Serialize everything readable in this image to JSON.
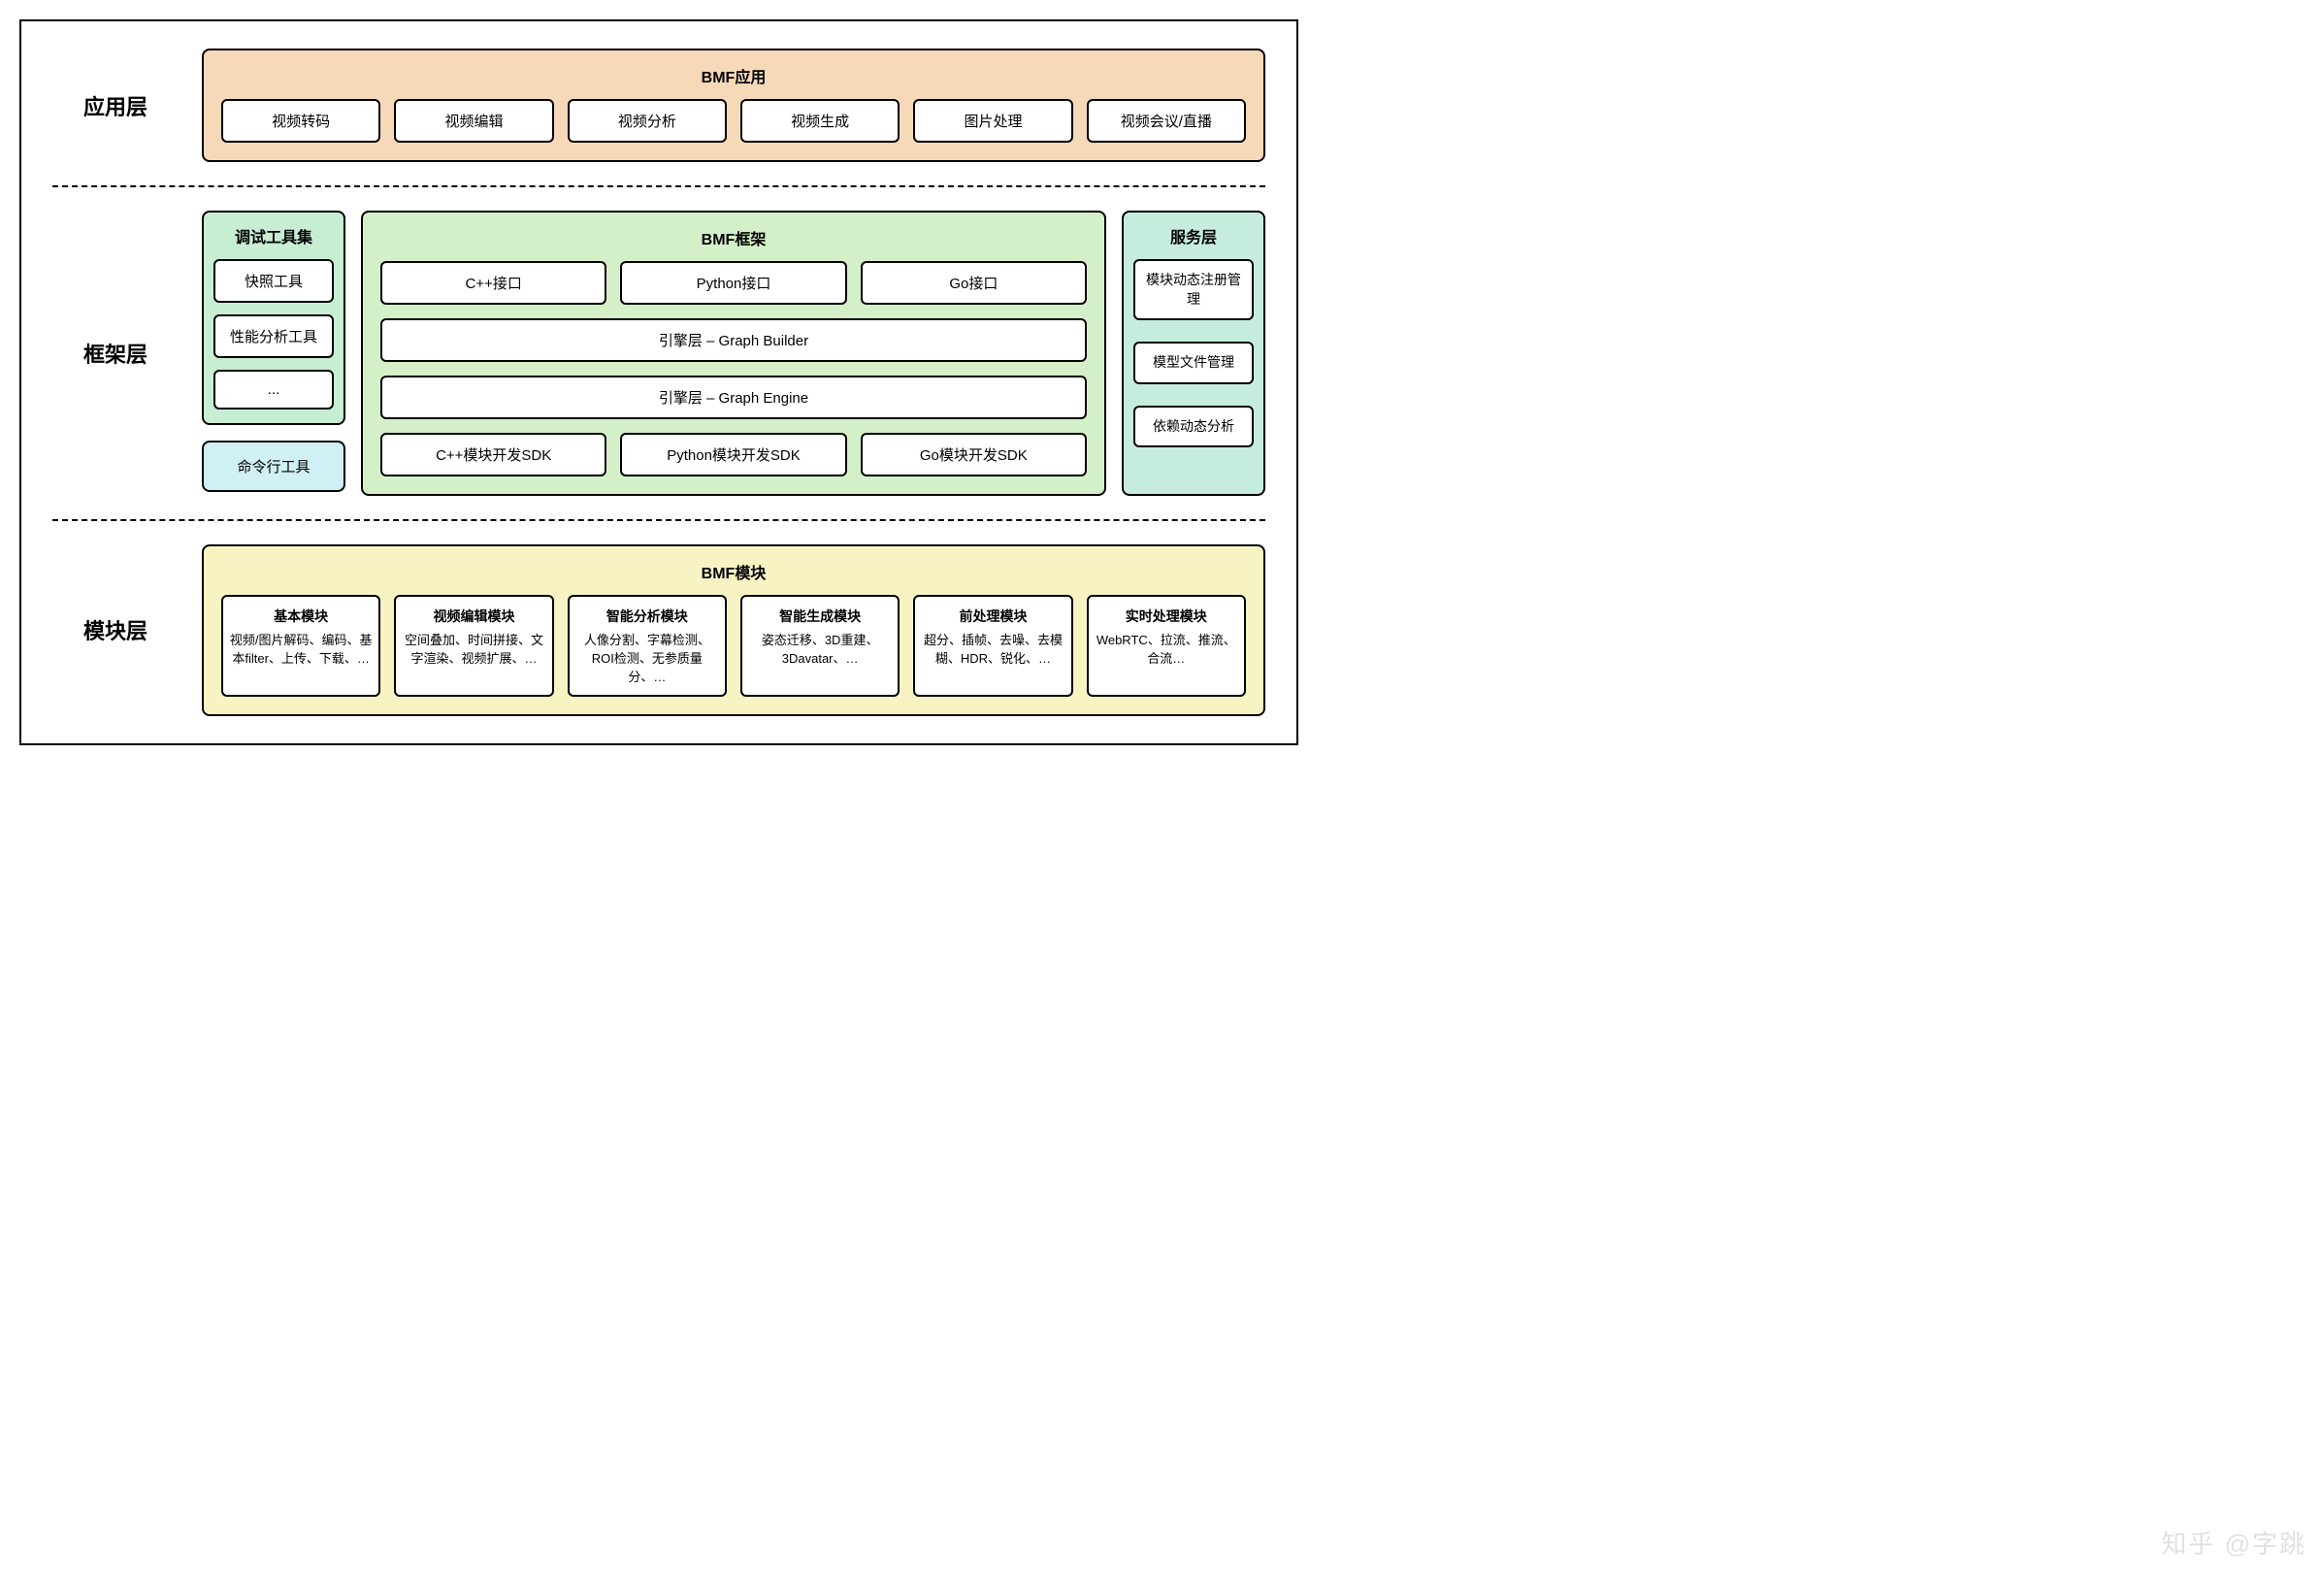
{
  "colors": {
    "border": "#000000",
    "bg": "#ffffff",
    "app_panel": "#f6d9b8",
    "debug_panel": "#c7edd2",
    "cli_box": "#d0f0f3",
    "framework_panel": "#d4f0c8",
    "service_panel": "#c6ecde",
    "module_panel": "#f8f3c3"
  },
  "typography": {
    "layer_label_size": 22,
    "panel_title_size": 16,
    "chip_size": 15,
    "module_title_size": 14,
    "module_desc_size": 13
  },
  "layers": {
    "app": {
      "label": "应用层",
      "panel_title": "BMF应用",
      "items": [
        "视频转码",
        "视频编辑",
        "视频分析",
        "视频生成",
        "图片处理",
        "视频会议/直播"
      ]
    },
    "framework": {
      "label": "框架层",
      "debug": {
        "title": "调试工具集",
        "items": [
          "快照工具",
          "性能分析工具",
          "..."
        ]
      },
      "cli": "命令行工具",
      "center": {
        "title": "BMF框架",
        "row1": [
          "C++接口",
          "Python接口",
          "Go接口"
        ],
        "row2": "引擎层 – Graph Builder",
        "row3": "引擎层 – Graph Engine",
        "row4": [
          "C++模块开发SDK",
          "Python模块开发SDK",
          "Go模块开发SDK"
        ]
      },
      "service": {
        "title": "服务层",
        "items": [
          "模块动态注册管理",
          "模型文件管理",
          "依赖动态分析"
        ]
      }
    },
    "module": {
      "label": "模块层",
      "panel_title": "BMF模块",
      "cards": [
        {
          "title": "基本模块",
          "desc": "视频/图片解码、编码、基本filter、上传、下载、…"
        },
        {
          "title": "视频编辑模块",
          "desc": "空间叠加、时间拼接、文字渲染、视频扩展、…"
        },
        {
          "title": "智能分析模块",
          "desc": "人像分割、字幕检测、ROI检测、无参质量分、…"
        },
        {
          "title": "智能生成模块",
          "desc": "姿态迁移、3D重建、3Davatar、…"
        },
        {
          "title": "前处理模块",
          "desc": "超分、插帧、去噪、去模糊、HDR、锐化、…"
        },
        {
          "title": "实时处理模块",
          "desc": "WebRTC、拉流、推流、合流…"
        }
      ]
    }
  },
  "watermark": "知乎 @字跳"
}
